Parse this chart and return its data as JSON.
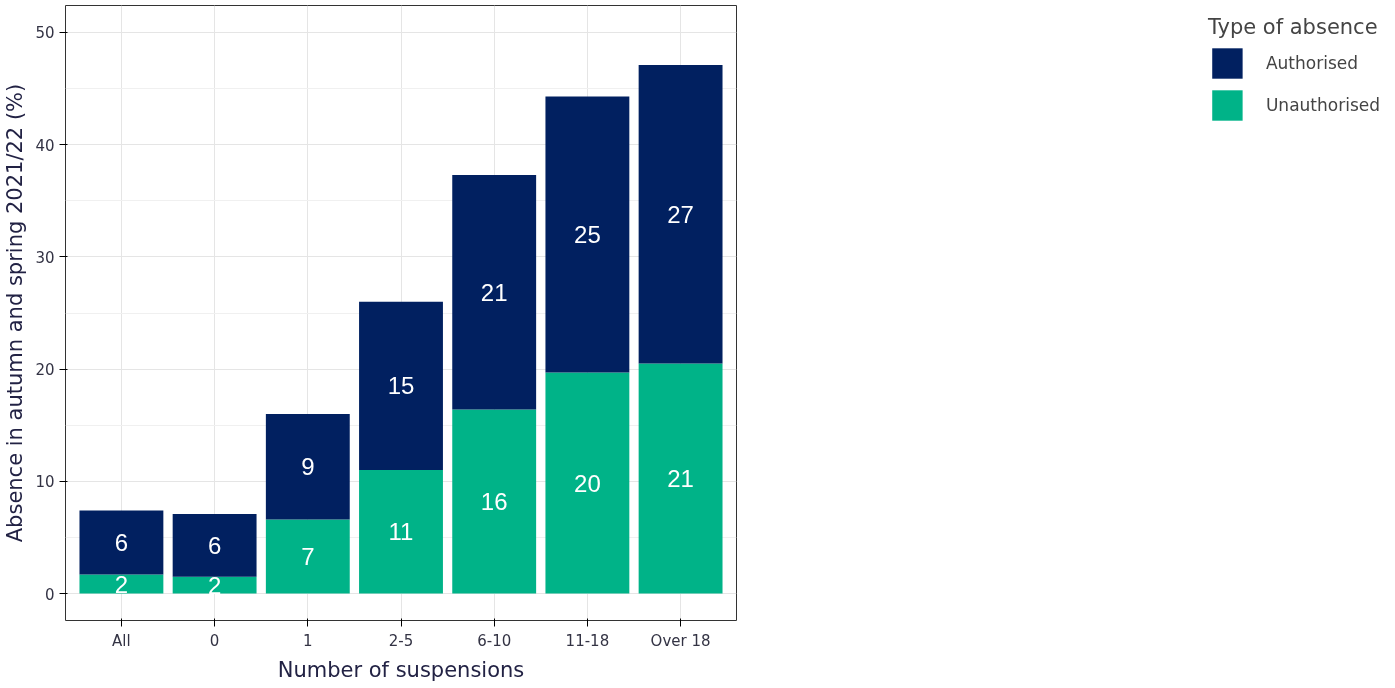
{
  "chart_data": {
    "type": "bar",
    "stacked": true,
    "xlabel": "Number of suspensions",
    "ylabel": "Absence in autumn and spring 2021/22 (%)",
    "legend_title": "Type of absence",
    "legend": "right",
    "grid": true,
    "categories": [
      "All",
      "0",
      "1",
      "2-5",
      "6-10",
      "11-18",
      "Over 18"
    ],
    "series": [
      {
        "name": "Unauthorised",
        "color": "#00b388",
        "values": [
          1.7,
          1.5,
          6.6,
          11.0,
          16.4,
          19.7,
          20.5
        ],
        "value_labels": [
          "2",
          "2",
          "7",
          "11",
          "16",
          "20",
          "21"
        ]
      },
      {
        "name": "Authorised",
        "color": "#012060",
        "values": [
          5.7,
          5.6,
          9.4,
          15.0,
          20.9,
          24.6,
          26.6
        ],
        "value_labels": [
          "6",
          "6",
          "9",
          "15",
          "21",
          "25",
          "27"
        ]
      }
    ],
    "ylim": [
      -2.4,
      52.4
    ],
    "yticks": [
      0,
      10,
      20,
      30,
      40,
      50
    ]
  }
}
